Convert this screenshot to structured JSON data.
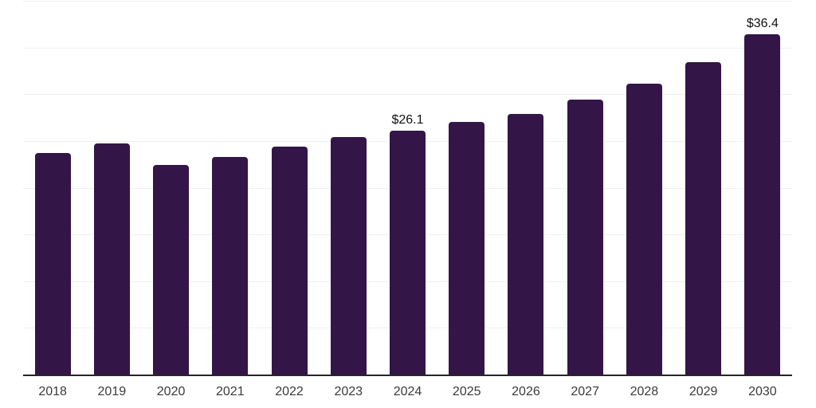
{
  "chart_data": {
    "type": "bar",
    "title": "",
    "xlabel": "",
    "ylabel": "",
    "categories": [
      "2018",
      "2019",
      "2020",
      "2021",
      "2022",
      "2023",
      "2024",
      "2025",
      "2026",
      "2027",
      "2028",
      "2029",
      "2030"
    ],
    "values": [
      23.7,
      24.7,
      22.4,
      23.3,
      24.4,
      25.4,
      26.1,
      27.0,
      27.9,
      29.4,
      31.1,
      33.4,
      36.4
    ],
    "data_labels": {
      "2024": "$26.1",
      "2030": "$36.4"
    },
    "currency_prefix": "$",
    "ylim": [
      0,
      40
    ],
    "grid_step": 5,
    "grid": "horizontal-only",
    "y_axis_labels": "none",
    "legend": "none"
  },
  "colors": {
    "bar": "#331548",
    "gridline": "#f0f0f0",
    "axis_line": "#262626",
    "tick_label": "#3a3a3a",
    "data_label": "#111111",
    "background": "#ffffff"
  }
}
